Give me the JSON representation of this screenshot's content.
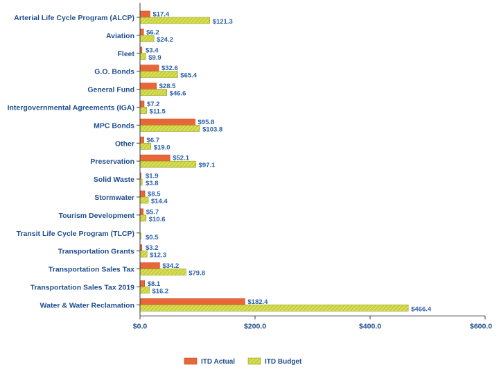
{
  "chart_data": {
    "type": "bar",
    "orientation": "horizontal",
    "categories": [
      "Arterial Life Cycle Program (ALCP)",
      "Aviation",
      "Fleet",
      "G.O. Bonds",
      "General Fund",
      "Intergovernmental Agreements (IGA)",
      "MPC Bonds",
      "Other",
      "Preservation",
      "Solid Waste",
      "Stormwater",
      "Tourism Development",
      "Transit Life Cycle Program (TLCP)",
      "Transportation Grants",
      "Transportation Sales Tax",
      "Transportation Sales Tax 2019",
      "Water & Water Reclamation"
    ],
    "series": [
      {
        "name": "ITD Actual",
        "color": "#e8663a",
        "values": [
          17.4,
          6.2,
          3.4,
          32.6,
          28.5,
          7.2,
          95.8,
          6.7,
          52.1,
          1.9,
          8.5,
          5.7,
          0,
          3.2,
          34.2,
          8.1,
          182.4
        ],
        "labels": [
          "$17.4",
          "$6.2",
          "$3.4",
          "$32.6",
          "$28.5",
          "$7.2",
          "$95.8",
          "$6.7",
          "$52.1",
          "$1.9",
          "$8.5",
          "$5.7",
          "",
          "$3.2",
          "$34.2",
          "$8.1",
          "$182.4"
        ]
      },
      {
        "name": "ITD Budget",
        "color": "#c9d23a",
        "values": [
          121.3,
          24.2,
          9.9,
          65.4,
          46.6,
          11.5,
          103.8,
          19.0,
          97.1,
          3.8,
          14.4,
          10.6,
          0.5,
          12.3,
          79.8,
          16.2,
          466.4
        ],
        "labels": [
          "$121.3",
          "$24.2",
          "$9.9",
          "$65.4",
          "$46.6",
          "$11.5",
          "$103.8",
          "$19.0",
          "$97.1",
          "$3.8",
          "$14.4",
          "$10.6",
          "$0.5",
          "$12.3",
          "$79.8",
          "$16.2",
          "$466.4"
        ]
      }
    ],
    "xlim": [
      0,
      600
    ],
    "xticks": [
      {
        "value": 0,
        "label": "$0.0"
      },
      {
        "value": 200,
        "label": "$200.0"
      },
      {
        "value": 400,
        "label": "$400.0"
      },
      {
        "value": 600,
        "label": "$600.0"
      }
    ],
    "title": "",
    "xlabel": "",
    "ylabel": "",
    "grid": false,
    "legend": "bottom-center"
  }
}
